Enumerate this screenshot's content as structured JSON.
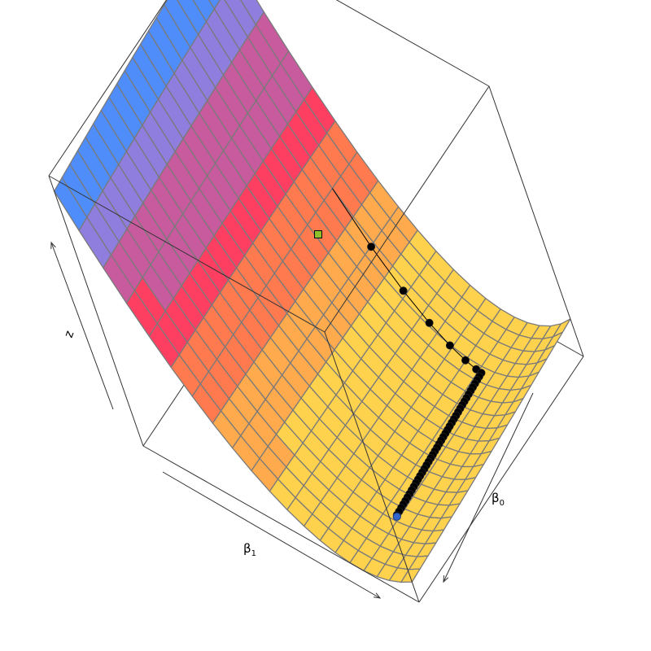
{
  "chart_data": {
    "type": "surface3d",
    "title": "",
    "axes": {
      "z": {
        "label": "z"
      },
      "beta1": {
        "label_symbol": "β",
        "label_subscript": "1"
      },
      "beta0": {
        "label_symbol": "β",
        "label_subscript": "0"
      }
    },
    "surface": {
      "grid_size": 20,
      "colormap": [
        "#ffd24d",
        "#ffab4d",
        "#ff7a4f",
        "#ff3f62",
        "#c85a9e",
        "#8f7ede",
        "#4f8dfa"
      ],
      "colormap_levels": 7,
      "mesh_color": "#7a7a7a"
    },
    "descent_path": {
      "point_color": "#000000",
      "points_leg1": 7,
      "points_leg2": 40
    },
    "markers": {
      "start": {
        "color": "#8fbf2a",
        "shape": "square"
      },
      "end": {
        "color": "#3366cc",
        "shape": "circle"
      }
    }
  }
}
